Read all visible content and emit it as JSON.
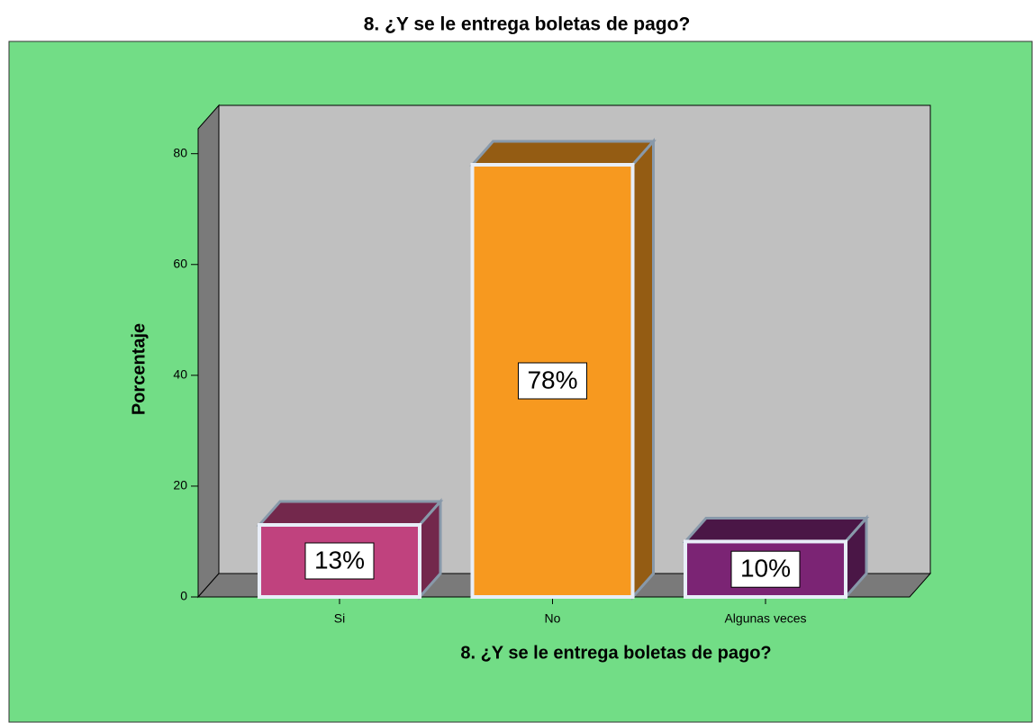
{
  "chart_data": {
    "type": "bar3d",
    "title": "8. ¿Y se le entrega boletas de pago?",
    "x_label": "8. ¿Y se le entrega boletas de pago?",
    "y_label": "Porcentaje",
    "categories": [
      "Si",
      "No",
      "Algunas veces"
    ],
    "values": [
      13,
      78,
      10
    ],
    "value_labels": [
      "13%",
      "78%",
      "10%"
    ],
    "colors": [
      "#c0427e",
      "#f7991f",
      "#7b2474"
    ],
    "ylim": [
      0,
      84.5
    ],
    "yticks": [
      0,
      20,
      40,
      60,
      80
    ]
  }
}
